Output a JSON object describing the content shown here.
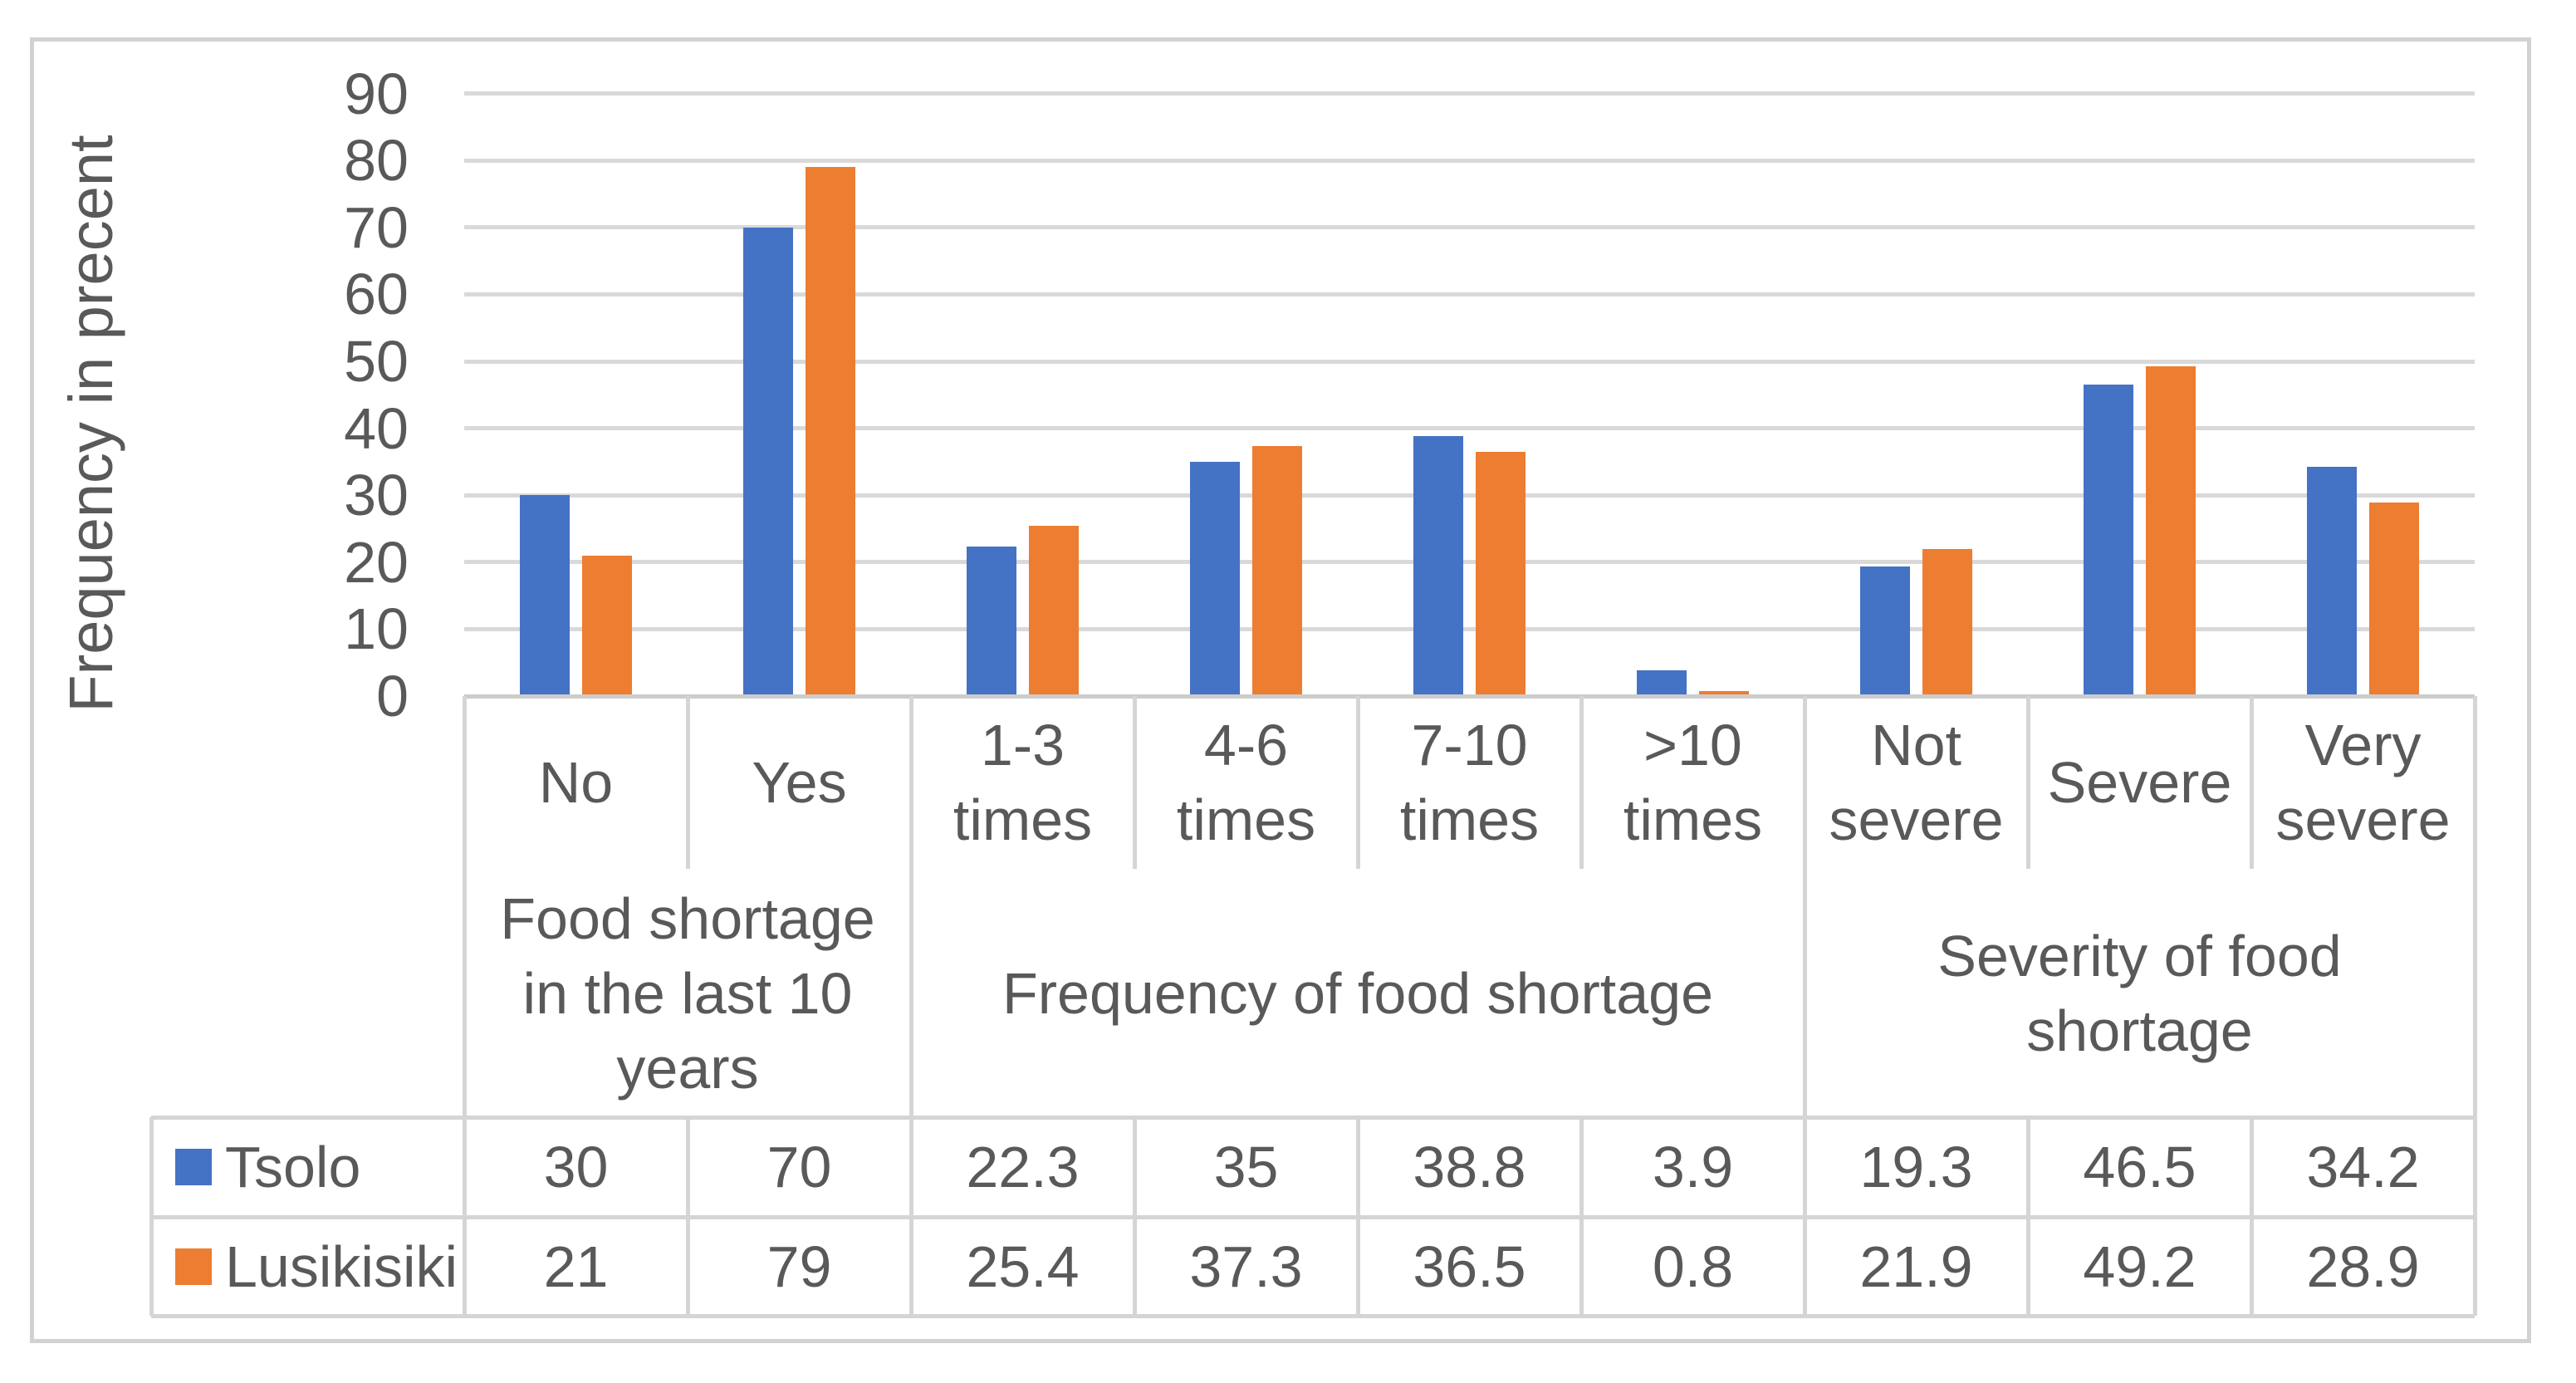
{
  "chart_data": {
    "type": "bar",
    "title": "",
    "ylabel": "Frequency in precent",
    "ylim": [
      0,
      90
    ],
    "yticks": [
      0,
      10,
      20,
      30,
      40,
      50,
      60,
      70,
      80,
      90
    ],
    "grid": true,
    "legend_position": "left-of-data-table",
    "categories": [
      "No",
      "Yes",
      "1-3 times",
      "4-6 times",
      "7-10 times",
      ">10 times",
      "Not severe",
      "Severe",
      "Very severe"
    ],
    "category_label_lines": [
      [
        "No"
      ],
      [
        "Yes"
      ],
      [
        "1-3",
        "times"
      ],
      [
        "4-6",
        "times"
      ],
      [
        "7-10",
        "times"
      ],
      [
        ">10",
        "times"
      ],
      [
        "Not",
        "severe"
      ],
      [
        "Severe"
      ],
      [
        "Very",
        "severe"
      ]
    ],
    "groups": [
      {
        "label": "Food shortage in the last 10 years",
        "label_lines": [
          "Food shortage",
          "in the last 10",
          "years"
        ],
        "span": 2
      },
      {
        "label": "Frequency of food shortage",
        "label_lines": [
          "Frequency of food shortage"
        ],
        "span": 4
      },
      {
        "label": "Severity of food shortage",
        "label_lines": [
          "Severity of food",
          "shortage"
        ],
        "span": 3
      }
    ],
    "series": [
      {
        "name": "Tsolo",
        "color": "#4472C4",
        "values": [
          30,
          70,
          22.3,
          35,
          38.8,
          3.9,
          19.3,
          46.5,
          34.2
        ]
      },
      {
        "name": "Lusikisiki",
        "color": "#ED7D31",
        "values": [
          21,
          79,
          25.4,
          37.3,
          36.5,
          0.8,
          21.9,
          49.2,
          28.9
        ]
      }
    ],
    "colors": {
      "text": "#595959",
      "gridline": "#D9D9D9",
      "axis_line": "#CCCCCC",
      "table_border": "#D5D5D5",
      "frame_border": "#D2D2D2",
      "background": "#FFFFFF"
    }
  }
}
